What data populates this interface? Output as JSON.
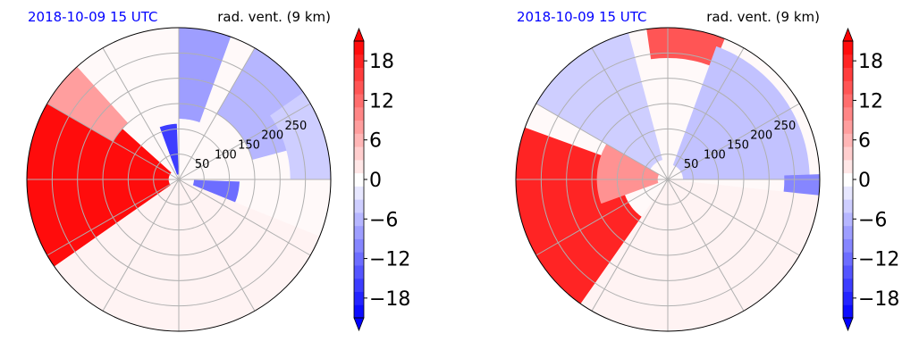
{
  "palette": {
    "title_left": "#0000ff",
    "title_right": "#000000",
    "negative_max": "#0000ff",
    "neutral": "#ffffff",
    "positive_max": "#ff0000",
    "grid": "#b0b0b0",
    "outline": "#000000"
  },
  "chart_data": [
    {
      "type": "heatmap",
      "projection": "polar",
      "title_left": "2018-10-09 15 UTC",
      "title_right": "rad. vent. (9 km)",
      "radial_ticks": [
        "50",
        "100",
        "150",
        "200",
        "250"
      ],
      "radial_tick_values": [
        50,
        100,
        150,
        200,
        250
      ],
      "rmax": 300,
      "angle_grid_step_deg": 30,
      "grid": true,
      "colorbar": {
        "vmin": -21,
        "vmax": 21,
        "step": 2,
        "extend": "both",
        "ticks": [
          18,
          12,
          6,
          0,
          -6,
          -12,
          -18
        ],
        "tick_labels": [
          "18",
          "12",
          "6",
          "0",
          "−6",
          "−12",
          "−18"
        ]
      },
      "features": [
        {
          "az1": 235,
          "az2": 312,
          "r1": 20,
          "r2": 300,
          "value": 20
        },
        {
          "az1": 300,
          "az2": 318,
          "r1": 150,
          "r2": 300,
          "value": 8
        },
        {
          "az1": 340,
          "az2": 358,
          "r1": 10,
          "r2": 110,
          "value": -16
        },
        {
          "az1": 0,
          "az2": 20,
          "r1": 120,
          "r2": 300,
          "value": -8
        },
        {
          "az1": 30,
          "az2": 75,
          "r1": 150,
          "r2": 300,
          "value": -6
        },
        {
          "az1": 92,
          "az2": 112,
          "r1": 30,
          "r2": 120,
          "value": -12
        },
        {
          "az1": 55,
          "az2": 90,
          "r1": 220,
          "r2": 300,
          "value": -4
        },
        {
          "az1": 112,
          "az2": 235,
          "r1": 0,
          "r2": 300,
          "value": 1
        }
      ]
    },
    {
      "type": "heatmap",
      "projection": "polar",
      "title_left": "2018-10-09 15 UTC",
      "title_right": "rad. vent. (9 km)",
      "radial_ticks": [
        "50",
        "100",
        "150",
        "200",
        "250"
      ],
      "radial_tick_values": [
        50,
        100,
        150,
        200,
        250
      ],
      "rmax": 300,
      "angle_grid_step_deg": 30,
      "grid": true,
      "colorbar": {
        "vmin": -21,
        "vmax": 21,
        "step": 2,
        "extend": "both",
        "ticks": [
          18,
          12,
          6,
          0,
          -6,
          -12,
          -18
        ],
        "tick_labels": [
          "18",
          "12",
          "6",
          "0",
          "−6",
          "−12",
          "−18"
        ]
      },
      "features": [
        {
          "az1": 215,
          "az2": 290,
          "r1": 90,
          "r2": 300,
          "value": 18
        },
        {
          "az1": 250,
          "az2": 300,
          "r1": 20,
          "r2": 140,
          "value": 9
        },
        {
          "az1": 352,
          "az2": 22,
          "r1": 240,
          "r2": 300,
          "value": 14
        },
        {
          "az1": 300,
          "az2": 345,
          "r1": 40,
          "r2": 300,
          "value": -4
        },
        {
          "az1": 20,
          "az2": 90,
          "r1": 30,
          "r2": 280,
          "value": -5
        },
        {
          "az1": 88,
          "az2": 98,
          "r1": 230,
          "r2": 300,
          "value": -10
        },
        {
          "az1": 96,
          "az2": 215,
          "r1": 0,
          "r2": 300,
          "value": 1
        }
      ]
    }
  ]
}
